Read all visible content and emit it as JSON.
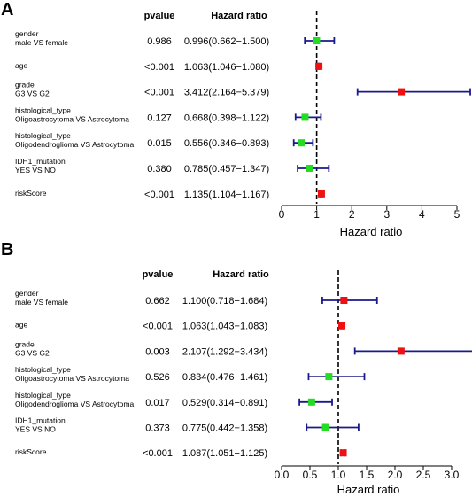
{
  "chart_data": [
    {
      "type": "forest",
      "panel_label": "A",
      "headers": {
        "pvalue": "pvalue",
        "hr": "Hazard ratio"
      },
      "xlabel": "Hazard ratio",
      "xlim": [
        0,
        5
      ],
      "ticks": [
        0,
        1,
        2,
        3,
        4,
        5
      ],
      "tick_labels": [
        "0",
        "1",
        "2",
        "3",
        "4",
        "5"
      ],
      "reference": 1,
      "rows": [
        {
          "variable": "gender",
          "comparison": "male VS female",
          "pvalue": "0.986",
          "hr_text": "0.996(0.662−1.500)",
          "hr": 0.996,
          "lo": 0.662,
          "hi": 1.5,
          "color": "#22dd22"
        },
        {
          "variable": "age",
          "comparison": "",
          "pvalue": "<0.001",
          "hr_text": "1.063(1.046−1.080)",
          "hr": 1.063,
          "lo": 1.046,
          "hi": 1.08,
          "color": "#ee1111"
        },
        {
          "variable": "grade",
          "comparison": "G3 VS G2",
          "pvalue": "<0.001",
          "hr_text": "3.412(2.164−5.379)",
          "hr": 3.412,
          "lo": 2.164,
          "hi": 5.379,
          "color": "#ee1111"
        },
        {
          "variable": "histological_type",
          "comparison": "Oligoastrocytoma VS Astrocytoma",
          "pvalue": "0.127",
          "hr_text": "0.668(0.398−1.122)",
          "hr": 0.668,
          "lo": 0.398,
          "hi": 1.122,
          "color": "#22dd22"
        },
        {
          "variable": "histological_type",
          "comparison": "Oligodendroglioma VS Astrocytoma",
          "pvalue": "0.015",
          "hr_text": "0.556(0.346−0.893)",
          "hr": 0.556,
          "lo": 0.346,
          "hi": 0.893,
          "color": "#22dd22"
        },
        {
          "variable": "IDH1_mutation",
          "comparison": "YES VS NO",
          "pvalue": "0.380",
          "hr_text": "0.785(0.457−1.347)",
          "hr": 0.785,
          "lo": 0.457,
          "hi": 1.347,
          "color": "#22dd22"
        },
        {
          "variable": "riskScore",
          "comparison": "",
          "pvalue": "<0.001",
          "hr_text": "1.135(1.104−1.167)",
          "hr": 1.135,
          "lo": 1.104,
          "hi": 1.167,
          "color": "#ee1111"
        }
      ]
    },
    {
      "type": "forest",
      "panel_label": "B",
      "headers": {
        "pvalue": "pvalue",
        "hr": "Hazard ratio"
      },
      "xlabel": "Hazard ratio",
      "xlim": [
        0,
        3
      ],
      "ticks": [
        0,
        0.5,
        1,
        1.5,
        2,
        2.5,
        3
      ],
      "tick_labels": [
        "0.0",
        "0.5",
        "1.0",
        "1.5",
        "2.0",
        "2.5",
        "3.0"
      ],
      "reference": 1,
      "rows": [
        {
          "variable": "gender",
          "comparison": "male VS female",
          "pvalue": "0.662",
          "hr_text": "1.100(0.718−1.684)",
          "hr": 1.1,
          "lo": 0.718,
          "hi": 1.684,
          "color": "#ee1111"
        },
        {
          "variable": "age",
          "comparison": "",
          "pvalue": "<0.001",
          "hr_text": "1.063(1.043−1.083)",
          "hr": 1.063,
          "lo": 1.043,
          "hi": 1.083,
          "color": "#ee1111"
        },
        {
          "variable": "grade",
          "comparison": "G3 VS G2",
          "pvalue": "0.003",
          "hr_text": "2.107(1.292−3.434)",
          "hr": 2.107,
          "lo": 1.292,
          "hi": 3.434,
          "color": "#ee1111"
        },
        {
          "variable": "histological_type",
          "comparison": "Oligoastrocytoma VS Astrocytoma",
          "pvalue": "0.526",
          "hr_text": "0.834(0.476−1.461)",
          "hr": 0.834,
          "lo": 0.476,
          "hi": 1.461,
          "color": "#22dd22"
        },
        {
          "variable": "histological_type",
          "comparison": "Oligodendroglioma VS Astrocytoma",
          "pvalue": "0.017",
          "hr_text": "0.529(0.314−0.891)",
          "hr": 0.529,
          "lo": 0.314,
          "hi": 0.891,
          "color": "#22dd22"
        },
        {
          "variable": "IDH1_mutation",
          "comparison": "YES VS NO",
          "pvalue": "0.373",
          "hr_text": "0.775(0.442−1.358)",
          "hr": 0.775,
          "lo": 0.442,
          "hi": 1.358,
          "color": "#22dd22"
        },
        {
          "variable": "riskScore",
          "comparison": "",
          "pvalue": "<0.001",
          "hr_text": "1.087(1.051−1.125)",
          "hr": 1.087,
          "lo": 1.051,
          "hi": 1.125,
          "color": "#ee1111"
        }
      ]
    }
  ]
}
